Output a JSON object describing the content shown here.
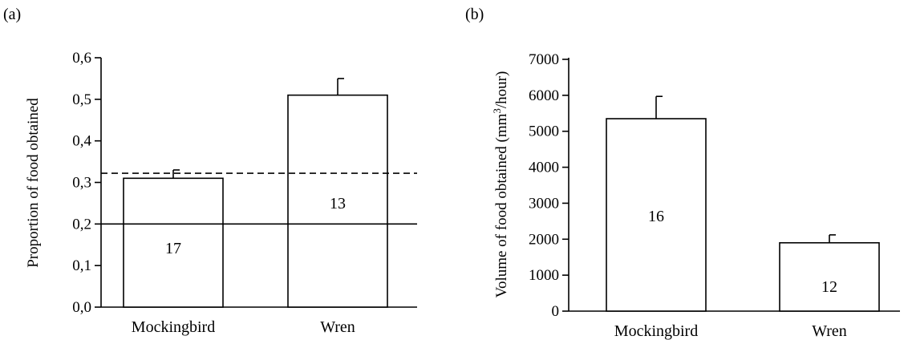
{
  "chart_data": [
    {
      "panel": "(a)",
      "type": "bar",
      "categories": [
        "Mockingbird",
        "Wren"
      ],
      "values": [
        0.31,
        0.51
      ],
      "errors": [
        0.02,
        0.04
      ],
      "sample_sizes": [
        "17",
        "13"
      ],
      "ylabel": "Proportion of food obtained",
      "xlabel": "",
      "ylim": [
        0,
        0.6
      ],
      "yticks": [
        "0,0",
        "0,1",
        "0,2",
        "0,3",
        "0,4",
        "0,5",
        "0,6"
      ],
      "reference_lines": [
        {
          "style": "solid",
          "value": 0.2
        },
        {
          "style": "dashed",
          "value": 0.322
        }
      ]
    },
    {
      "panel": "(b)",
      "type": "bar",
      "categories": [
        "Mockingbird",
        "Wren"
      ],
      "values": [
        5350,
        1900
      ],
      "errors": [
        620,
        220
      ],
      "sample_sizes": [
        "16",
        "12"
      ],
      "ylabel_main": "Volume of food obtained (mm",
      "ylabel_sup": "3",
      "ylabel_end": "/hour)",
      "xlabel": "",
      "ylim": [
        0,
        7000
      ],
      "yticks": [
        "0",
        "1000",
        "2000",
        "3000",
        "4000",
        "5000",
        "6000",
        "7000"
      ]
    }
  ]
}
